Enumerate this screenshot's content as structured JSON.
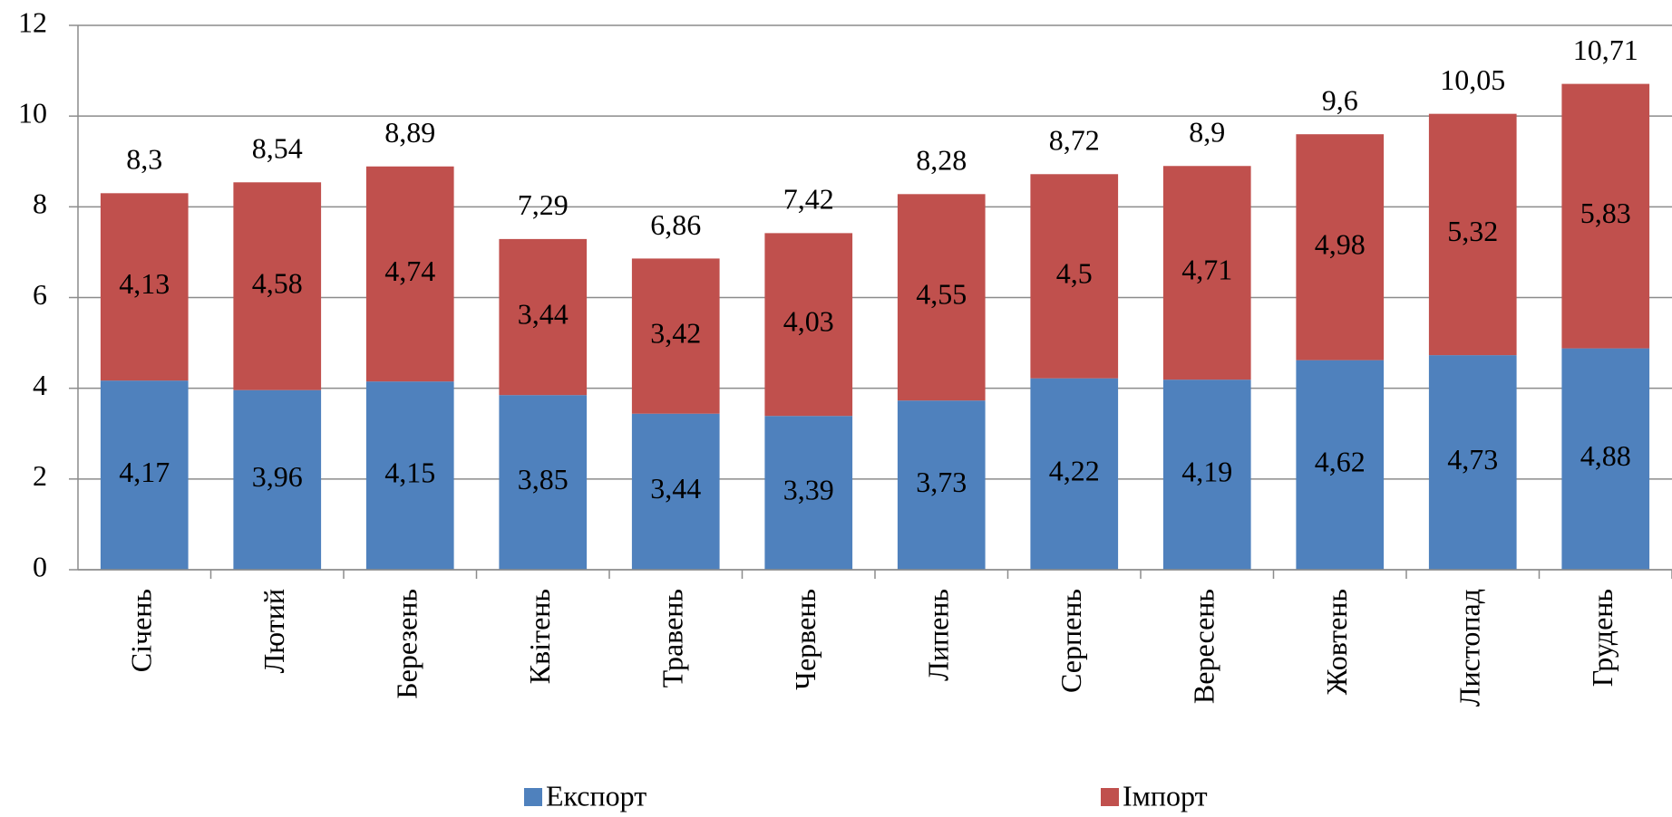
{
  "chart_data": {
    "type": "stacked_bar",
    "categories": [
      "Січень",
      "Лютий",
      "Березень",
      "Квітень",
      "Травень",
      "Червень",
      "Липень",
      "Серпень",
      "Вересень",
      "Жовтень",
      "Листопад",
      "Грудень"
    ],
    "series": [
      {
        "name": "Експорт",
        "color": "#4f81bd",
        "values": [
          4.17,
          3.96,
          4.15,
          3.85,
          3.44,
          3.39,
          3.73,
          4.22,
          4.19,
          4.62,
          4.73,
          4.88
        ],
        "value_labels": [
          "4,17",
          "3,96",
          "4,15",
          "3,85",
          "3,44",
          "3,39",
          "3,73",
          "4,22",
          "4,19",
          "4,62",
          "4,73",
          "4,88"
        ]
      },
      {
        "name": "Імпорт",
        "color": "#c0504d",
        "values": [
          4.13,
          4.58,
          4.74,
          3.44,
          3.42,
          4.03,
          4.55,
          4.5,
          4.71,
          4.98,
          5.32,
          5.83
        ],
        "value_labels": [
          "4,13",
          "4,58",
          "4,74",
          "3,44",
          "3,42",
          "4,03",
          "4,55",
          "4,5",
          "4,71",
          "4,98",
          "5,32",
          "5,83"
        ]
      }
    ],
    "totals": [
      8.3,
      8.54,
      8.89,
      7.29,
      6.86,
      7.42,
      8.28,
      8.72,
      8.9,
      9.6,
      10.05,
      10.71
    ],
    "total_labels": [
      "8,3",
      "8,54",
      "8,89",
      "7,29",
      "6,86",
      "7,42",
      "8,28",
      "8,72",
      "8,9",
      "9,6",
      "10,05",
      "10,71"
    ],
    "ylim": [
      0,
      12
    ],
    "yticks": [
      0,
      2,
      4,
      6,
      8,
      10,
      12
    ],
    "grid": true,
    "legend": "bottom"
  }
}
